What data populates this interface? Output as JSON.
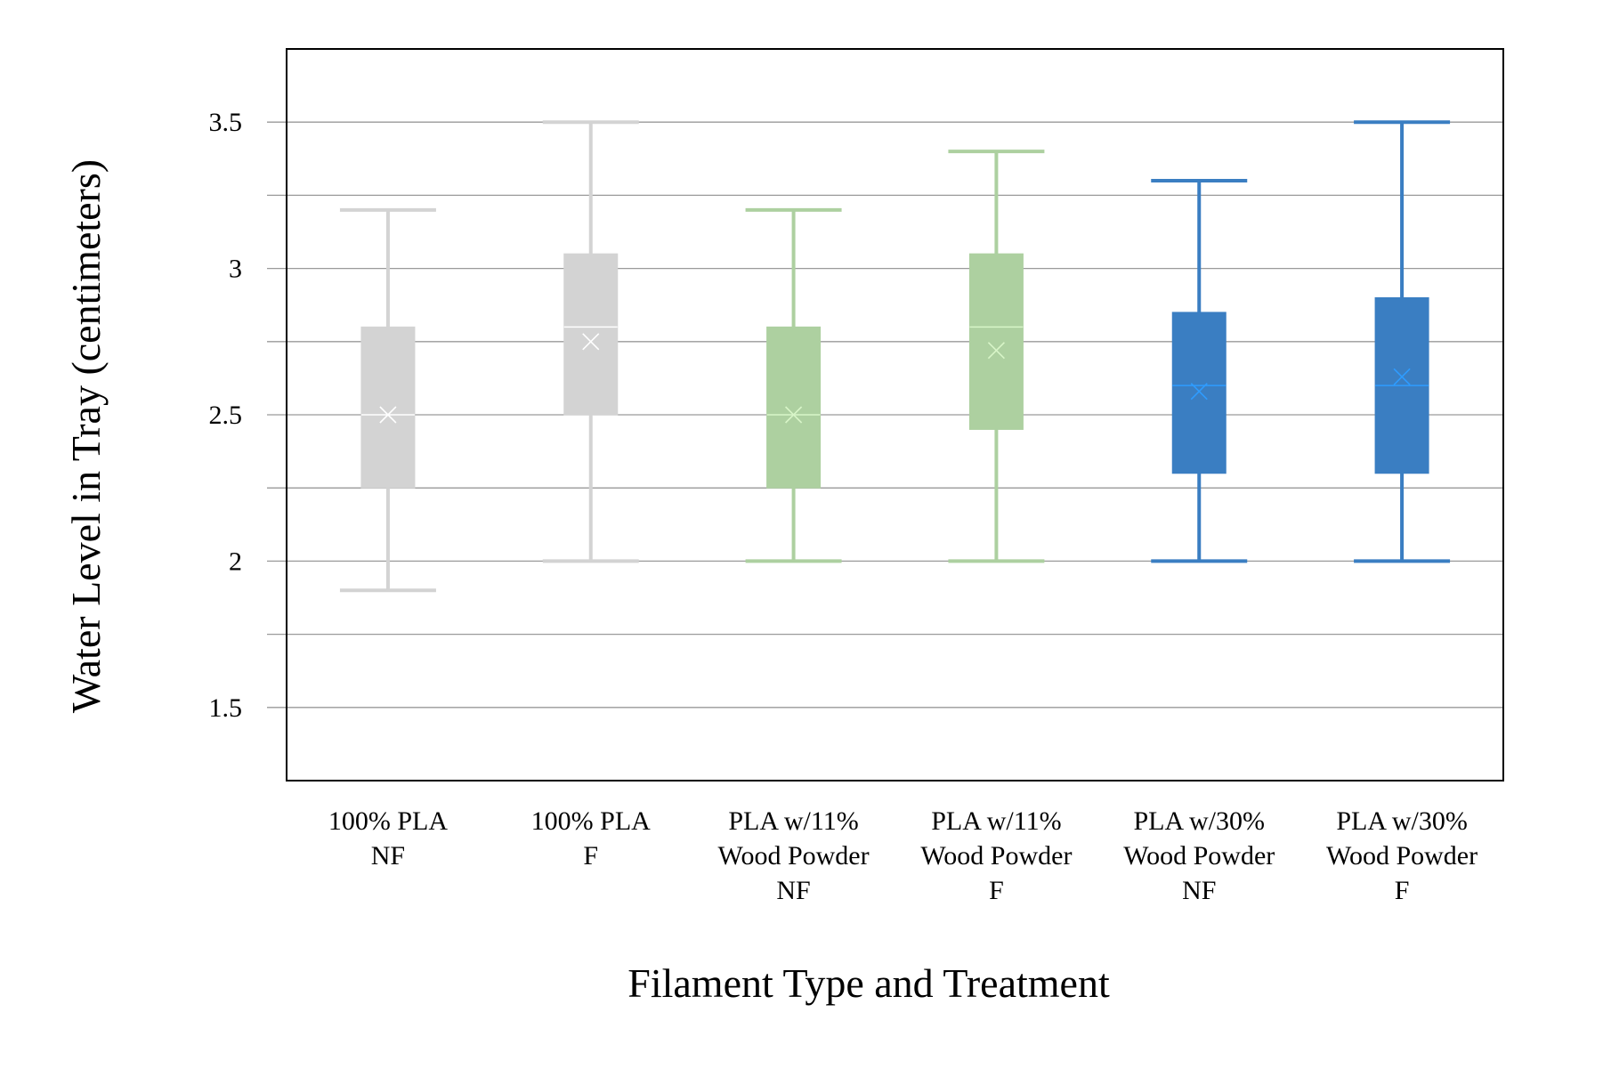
{
  "chart_data": {
    "type": "box",
    "title": "",
    "xlabel": "Filament Type and Treatment",
    "ylabel": "Water Level in Tray (centimeters)",
    "ylim": [
      1.25,
      3.75
    ],
    "yticks": [
      "1.5",
      "2",
      "2.5",
      "3",
      "3.5"
    ],
    "grid": true,
    "categories": [
      {
        "lines": [
          "100% PLA",
          "NF"
        ]
      },
      {
        "lines": [
          "100% PLA",
          "F"
        ]
      },
      {
        "lines": [
          "PLA w/11%",
          "Wood Powder",
          "NF"
        ]
      },
      {
        "lines": [
          "PLA w/11%",
          "Wood Powder",
          "F"
        ]
      },
      {
        "lines": [
          "PLA w/30%",
          "Wood Powder",
          "NF"
        ]
      },
      {
        "lines": [
          "PLA w/30%",
          "Wood Powder",
          "F"
        ]
      }
    ],
    "boxes": [
      {
        "min": 1.9,
        "q1": 2.25,
        "median": 2.5,
        "mean": 2.5,
        "q3": 2.8,
        "max": 3.2,
        "color": "#d3d3d3",
        "accent": "#ffffff"
      },
      {
        "min": 2.0,
        "q1": 2.5,
        "median": 2.8,
        "mean": 2.75,
        "q3": 3.05,
        "max": 3.5,
        "color": "#d3d3d3",
        "accent": "#ffffff"
      },
      {
        "min": 2.0,
        "q1": 2.25,
        "median": 2.5,
        "mean": 2.5,
        "q3": 2.8,
        "max": 3.2,
        "color": "#add0a0",
        "accent": "#d8f5c8"
      },
      {
        "min": 2.0,
        "q1": 2.45,
        "median": 2.8,
        "mean": 2.72,
        "q3": 3.05,
        "max": 3.4,
        "color": "#add0a0",
        "accent": "#d8f5c8"
      },
      {
        "min": 2.0,
        "q1": 2.3,
        "median": 2.6,
        "mean": 2.58,
        "q3": 2.85,
        "max": 3.3,
        "color": "#3a7ec2",
        "accent": "#2e9cff"
      },
      {
        "min": 2.0,
        "q1": 2.3,
        "median": 2.6,
        "mean": 2.63,
        "q3": 2.9,
        "max": 3.5,
        "color": "#3a7ec2",
        "accent": "#2e9cff"
      }
    ]
  }
}
